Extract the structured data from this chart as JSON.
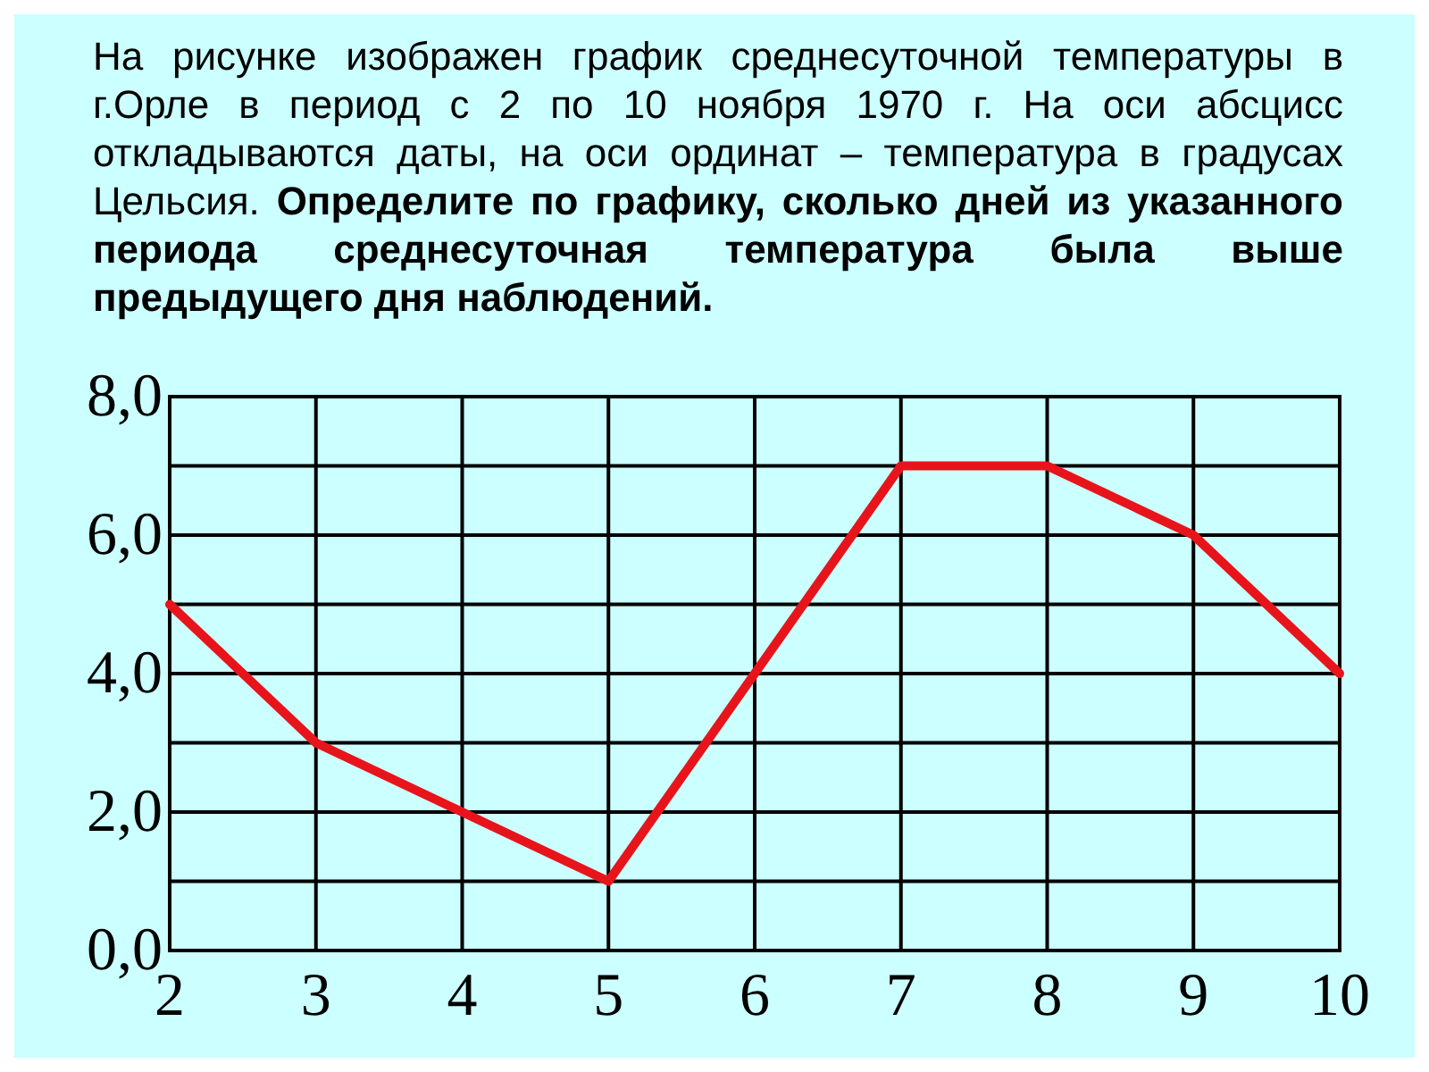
{
  "chart_data": {
    "type": "line",
    "title": "На рисунке изображен график среднесуточной температуры в г.Орле в период с 2 по 10 ноября 1970 г. На оси абсцисс откладываются даты, на оси ординат – температура в градусах Цельсия.",
    "subtitle": "Определите по графику, сколько дней из указанного периода среднесуточная температура была выше предыдущего дня наблюдений.",
    "x": [
      2,
      3,
      4,
      5,
      6,
      7,
      8,
      9,
      10
    ],
    "series": [
      {
        "color": "#e8141c",
        "values": [
          5,
          3,
          2,
          1,
          4,
          7,
          7,
          6,
          4
        ]
      }
    ],
    "xlim": [
      2,
      10
    ],
    "xticks": [
      2,
      3,
      4,
      5,
      6,
      7,
      8,
      9,
      10
    ],
    "ylim": [
      0,
      8
    ],
    "yticks": [
      {
        "value": 0,
        "label": "0,0"
      },
      {
        "value": 1,
        "label": null
      },
      {
        "value": 2,
        "label": "2,0"
      },
      {
        "value": 3,
        "label": null
      },
      {
        "value": 4,
        "label": "4,0"
      },
      {
        "value": 5,
        "label": null
      },
      {
        "value": 6,
        "label": "6,0"
      },
      {
        "value": 7,
        "label": null
      },
      {
        "value": 8,
        "label": "8,0"
      }
    ],
    "grid": true,
    "marker": "none",
    "line_style": "solid"
  }
}
